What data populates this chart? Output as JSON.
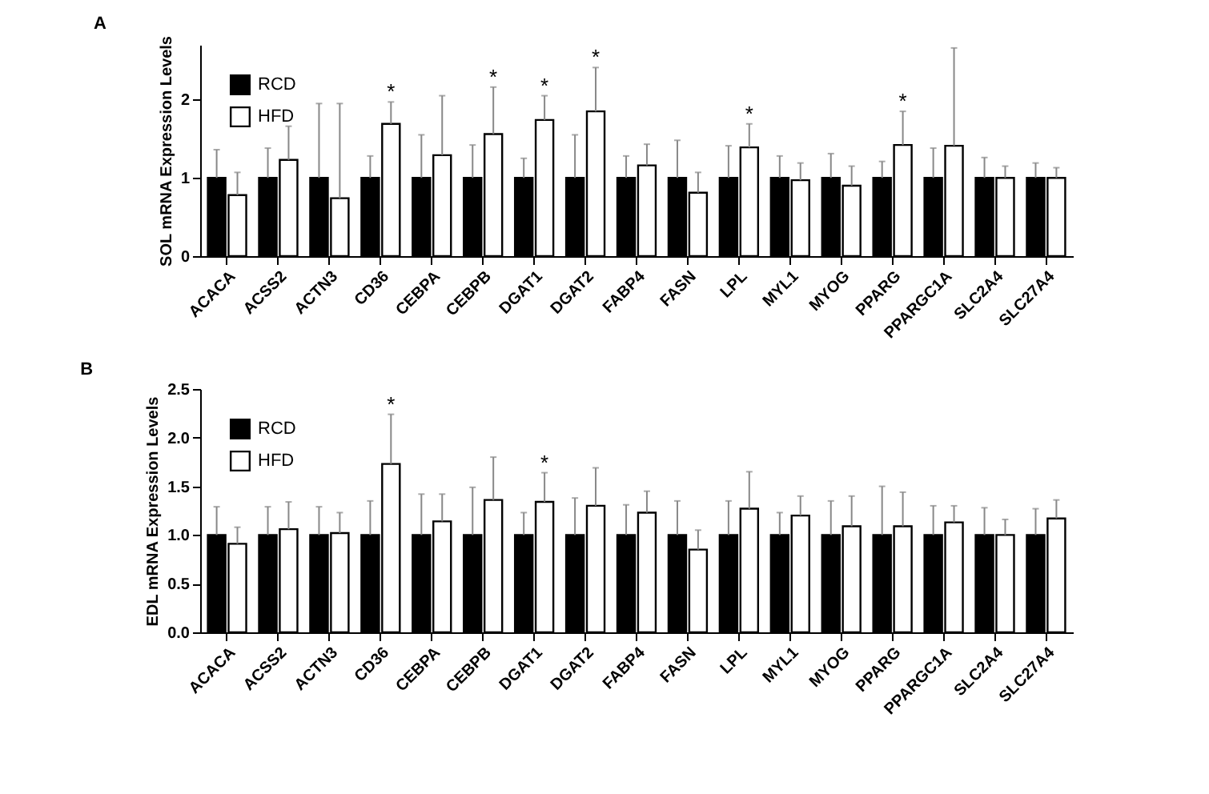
{
  "chart_data": [
    {
      "type": "bar",
      "title": "A",
      "ylabel": "SOL mRNA Expression Levels",
      "categories": [
        "ACACA",
        "ACSS2",
        "ACTN3",
        "CD36",
        "CEBPA",
        "CEBPB",
        "DGAT1",
        "DGAT2",
        "FABP4",
        "FASN",
        "LPL",
        "MYL1",
        "MYOG",
        "PPARG",
        "PPARGC1A",
        "SLC2A4",
        "SLC27A4"
      ],
      "series": [
        {
          "name": "RCD",
          "color": "#000000",
          "values": [
            1,
            1,
            1,
            1,
            1,
            1,
            1,
            1,
            1,
            1,
            1,
            1,
            1,
            1,
            1,
            1,
            1
          ],
          "errors": [
            [
              1,
              1.36
            ],
            [
              1,
              1.38
            ],
            [
              1,
              1.95
            ],
            [
              1,
              1.28
            ],
            [
              1,
              1.55
            ],
            [
              1,
              1.42
            ],
            [
              1,
              1.25
            ],
            [
              1,
              1.55
            ],
            [
              1,
              1.28
            ],
            [
              1,
              1.48
            ],
            [
              1,
              1.41
            ],
            [
              1,
              1.28
            ],
            [
              1,
              1.31
            ],
            [
              1,
              1.21
            ],
            [
              1,
              1.38
            ],
            [
              1,
              1.26
            ],
            [
              1,
              1.19
            ]
          ]
        },
        {
          "name": "HFD",
          "color": "#ffffff",
          "values": [
            0.78,
            1.23,
            0.74,
            1.69,
            1.29,
            1.56,
            1.74,
            1.85,
            1.16,
            0.81,
            1.39,
            0.97,
            0.9,
            1.42,
            1.41,
            1.0,
            1.0
          ],
          "errors": [
            [
              0.78,
              1.07
            ],
            [
              1.23,
              1.66
            ],
            [
              0.74,
              1.95
            ],
            [
              1.69,
              1.97
            ],
            [
              1.29,
              2.05
            ],
            [
              1.56,
              2.16
            ],
            [
              1.74,
              2.05
            ],
            [
              1.85,
              2.41
            ],
            [
              1.16,
              1.43
            ],
            [
              0.81,
              1.07
            ],
            [
              1.39,
              1.69
            ],
            [
              0.97,
              1.19
            ],
            [
              0.9,
              1.15
            ],
            [
              1.42,
              1.85
            ],
            [
              1.41,
              2.66
            ],
            [
              1.0,
              1.15
            ],
            [
              1.0,
              1.13
            ]
          ]
        }
      ],
      "ylim": [
        0,
        2.7
      ],
      "yticks": [
        0,
        1,
        2
      ],
      "grid": false,
      "legend": "top left",
      "annotations": [
        {
          "text": "*",
          "x": "CD36",
          "y": 1.97
        },
        {
          "text": "*",
          "x": "CEBPB",
          "y": 2.16
        },
        {
          "text": "*",
          "x": "DGAT1",
          "y": 2.05
        },
        {
          "text": "*",
          "x": "DGAT2",
          "y": 2.41
        },
        {
          "text": "*",
          "x": "LPL",
          "y": 1.69
        },
        {
          "text": "*",
          "x": "PPARG",
          "y": 1.85
        }
      ]
    },
    {
      "type": "bar",
      "title": "B",
      "ylabel": "EDL mRNA Expression Levels",
      "categories": [
        "ACACA",
        "ACSS2",
        "ACTN3",
        "CD36",
        "CEBPA",
        "CEBPB",
        "DGAT1",
        "DGAT2",
        "FABP4",
        "FASN",
        "LPL",
        "MYL1",
        "MYOG",
        "PPARG",
        "PPARGC1A",
        "SLC2A4",
        "SLC27A4"
      ],
      "series": [
        {
          "name": "RCD",
          "color": "#000000",
          "values": [
            1,
            1,
            1,
            1,
            1,
            1,
            1,
            1,
            1,
            1,
            1,
            1,
            1,
            1,
            1,
            1,
            1
          ],
          "errors": [
            [
              1,
              1.29
            ],
            [
              1,
              1.29
            ],
            [
              1,
              1.29
            ],
            [
              1,
              1.35
            ],
            [
              1,
              1.42
            ],
            [
              1,
              1.49
            ],
            [
              1,
              1.23
            ],
            [
              1,
              1.38
            ],
            [
              1,
              1.31
            ],
            [
              1,
              1.35
            ],
            [
              1,
              1.35
            ],
            [
              1,
              1.23
            ],
            [
              1,
              1.35
            ],
            [
              1,
              1.5
            ],
            [
              1,
              1.3
            ],
            [
              1,
              1.28
            ],
            [
              1,
              1.27
            ]
          ]
        },
        {
          "name": "HFD",
          "color": "#ffffff",
          "values": [
            0.91,
            1.06,
            1.02,
            1.73,
            1.14,
            1.36,
            1.34,
            1.3,
            1.23,
            0.85,
            1.27,
            1.2,
            1.09,
            1.09,
            1.13,
            1.0,
            1.17
          ],
          "errors": [
            [
              0.91,
              1.08
            ],
            [
              1.06,
              1.34
            ],
            [
              1.02,
              1.23
            ],
            [
              1.73,
              2.24
            ],
            [
              1.14,
              1.42
            ],
            [
              1.36,
              1.8
            ],
            [
              1.34,
              1.64
            ],
            [
              1.3,
              1.69
            ],
            [
              1.23,
              1.45
            ],
            [
              0.85,
              1.05
            ],
            [
              1.27,
              1.65
            ],
            [
              1.2,
              1.4
            ],
            [
              1.09,
              1.4
            ],
            [
              1.09,
              1.44
            ],
            [
              1.13,
              1.3
            ],
            [
              1.0,
              1.16
            ],
            [
              1.17,
              1.36
            ]
          ]
        }
      ],
      "ylim": [
        0,
        2.5
      ],
      "yticks": [
        {
          "value": 0,
          "label": "0.0"
        },
        {
          "value": 0.5,
          "label": "0.5"
        },
        {
          "value": 1,
          "label": "1.0"
        },
        {
          "value": 1.5,
          "label": "1.5"
        },
        {
          "value": 2,
          "label": "2.0"
        },
        {
          "value": 2.5,
          "label": "2.5"
        }
      ],
      "grid": false,
      "legend": "top left",
      "annotations": [
        {
          "text": "*",
          "x": "CD36",
          "y": 2.24
        },
        {
          "text": "*",
          "x": "DGAT1",
          "y": 1.64
        }
      ]
    }
  ]
}
